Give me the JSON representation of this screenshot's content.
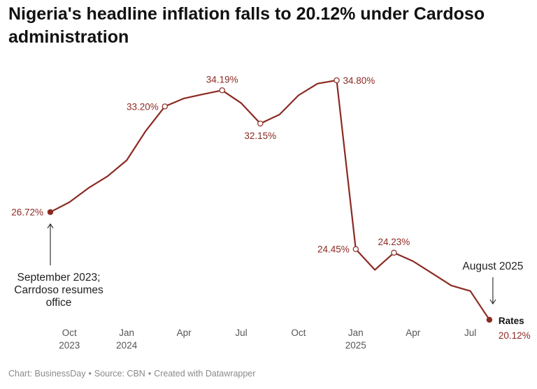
{
  "title": "Nigeria's headline inflation falls to 20.12% under Cardoso administration",
  "colors": {
    "line": "#8b2a22",
    "label": "#8b2a22",
    "axis_text": "#555555",
    "annotation": "#222222"
  },
  "chart_data": {
    "type": "line",
    "title": "Nigeria's headline inflation falls to 20.12% under Cardoso administration",
    "xlabel": "",
    "ylabel": "",
    "grid": false,
    "ylim": [
      19,
      36
    ],
    "series": [
      {
        "name": "Rates",
        "x": [
          "2023-09",
          "2023-10",
          "2023-11",
          "2023-12",
          "2024-01",
          "2024-02",
          "2024-03",
          "2024-04",
          "2024-05",
          "2024-06",
          "2024-07",
          "2024-08",
          "2024-09",
          "2024-10",
          "2024-11",
          "2024-12",
          "2025-01",
          "2025-02",
          "2025-03",
          "2025-04",
          "2025-05",
          "2025-06",
          "2025-07",
          "2025-08"
        ],
        "values": [
          26.72,
          27.33,
          28.2,
          28.92,
          29.9,
          31.7,
          33.2,
          33.69,
          33.95,
          34.19,
          33.4,
          32.15,
          32.7,
          33.88,
          34.6,
          34.8,
          24.45,
          23.18,
          24.23,
          23.71,
          22.97,
          22.22,
          21.88,
          20.12
        ]
      }
    ],
    "labels": [
      {
        "index": 0,
        "text": "26.72%"
      },
      {
        "index": 6,
        "text": "33.20%"
      },
      {
        "index": 9,
        "text": "34.19%"
      },
      {
        "index": 11,
        "text": "32.15%"
      },
      {
        "index": 15,
        "text": "34.80%"
      },
      {
        "index": 16,
        "text": "24.45%"
      },
      {
        "index": 18,
        "text": "24.23%"
      },
      {
        "index": 23,
        "text": "20.12%"
      }
    ],
    "x_ticks": [
      {
        "index": 1,
        "line1": "Oct",
        "line2": "2023"
      },
      {
        "index": 4,
        "line1": "Jan",
        "line2": "2024"
      },
      {
        "index": 7,
        "line1": "Apr",
        "line2": ""
      },
      {
        "index": 10,
        "line1": "Jul",
        "line2": ""
      },
      {
        "index": 13,
        "line1": "Oct",
        "line2": ""
      },
      {
        "index": 16,
        "line1": "Jan",
        "line2": "2025"
      },
      {
        "index": 19,
        "line1": "Apr",
        "line2": ""
      },
      {
        "index": 22,
        "line1": "Jul",
        "line2": ""
      }
    ],
    "series_label": "Rates",
    "annotations": [
      {
        "index": 0,
        "lines": [
          "September 2023;",
          "Carrdoso resumes",
          "office"
        ],
        "direction": "up"
      },
      {
        "index": 23,
        "lines": [
          "August 2025"
        ],
        "direction": "down"
      }
    ]
  },
  "footer": {
    "chart_credit": "Chart: BusinessDay",
    "source": "Source: CBN",
    "created": "Created with Datawrapper",
    "separator": "•"
  }
}
